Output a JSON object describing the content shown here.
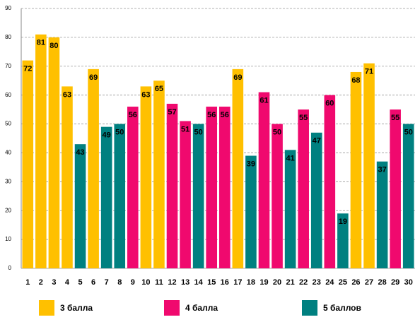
{
  "chart_data": {
    "type": "bar",
    "categories": [
      "1",
      "2",
      "3",
      "4",
      "5",
      "6",
      "7",
      "8",
      "9",
      "10",
      "11",
      "12",
      "13",
      "14",
      "15",
      "16",
      "17",
      "18",
      "19",
      "20",
      "21",
      "22",
      "23",
      "24",
      "25",
      "26",
      "27",
      "28",
      "29",
      "30"
    ],
    "series": [
      {
        "name": "3 балла",
        "color": "#FFC000",
        "values": [
          72,
          81,
          80,
          63,
          null,
          69,
          null,
          null,
          null,
          63,
          65,
          null,
          null,
          null,
          null,
          null,
          69,
          null,
          null,
          null,
          null,
          null,
          null,
          null,
          null,
          68,
          71,
          null,
          null,
          null
        ]
      },
      {
        "name": "4 балла",
        "color": "#F0096E",
        "values": [
          null,
          null,
          null,
          null,
          null,
          null,
          null,
          null,
          56,
          null,
          null,
          57,
          51,
          null,
          56,
          56,
          null,
          null,
          61,
          50,
          null,
          55,
          null,
          60,
          null,
          null,
          null,
          null,
          55,
          null
        ]
      },
      {
        "name": "5 баллов",
        "color": "#008080",
        "values": [
          null,
          null,
          null,
          null,
          43,
          null,
          49,
          50,
          null,
          null,
          null,
          null,
          null,
          50,
          null,
          null,
          null,
          39,
          null,
          null,
          41,
          null,
          47,
          null,
          19,
          null,
          null,
          37,
          null,
          50
        ]
      }
    ],
    "ylim": [
      0,
      90
    ],
    "yticks": [
      0,
      10,
      20,
      30,
      40,
      50,
      60,
      70,
      80,
      90
    ],
    "grid": true
  }
}
